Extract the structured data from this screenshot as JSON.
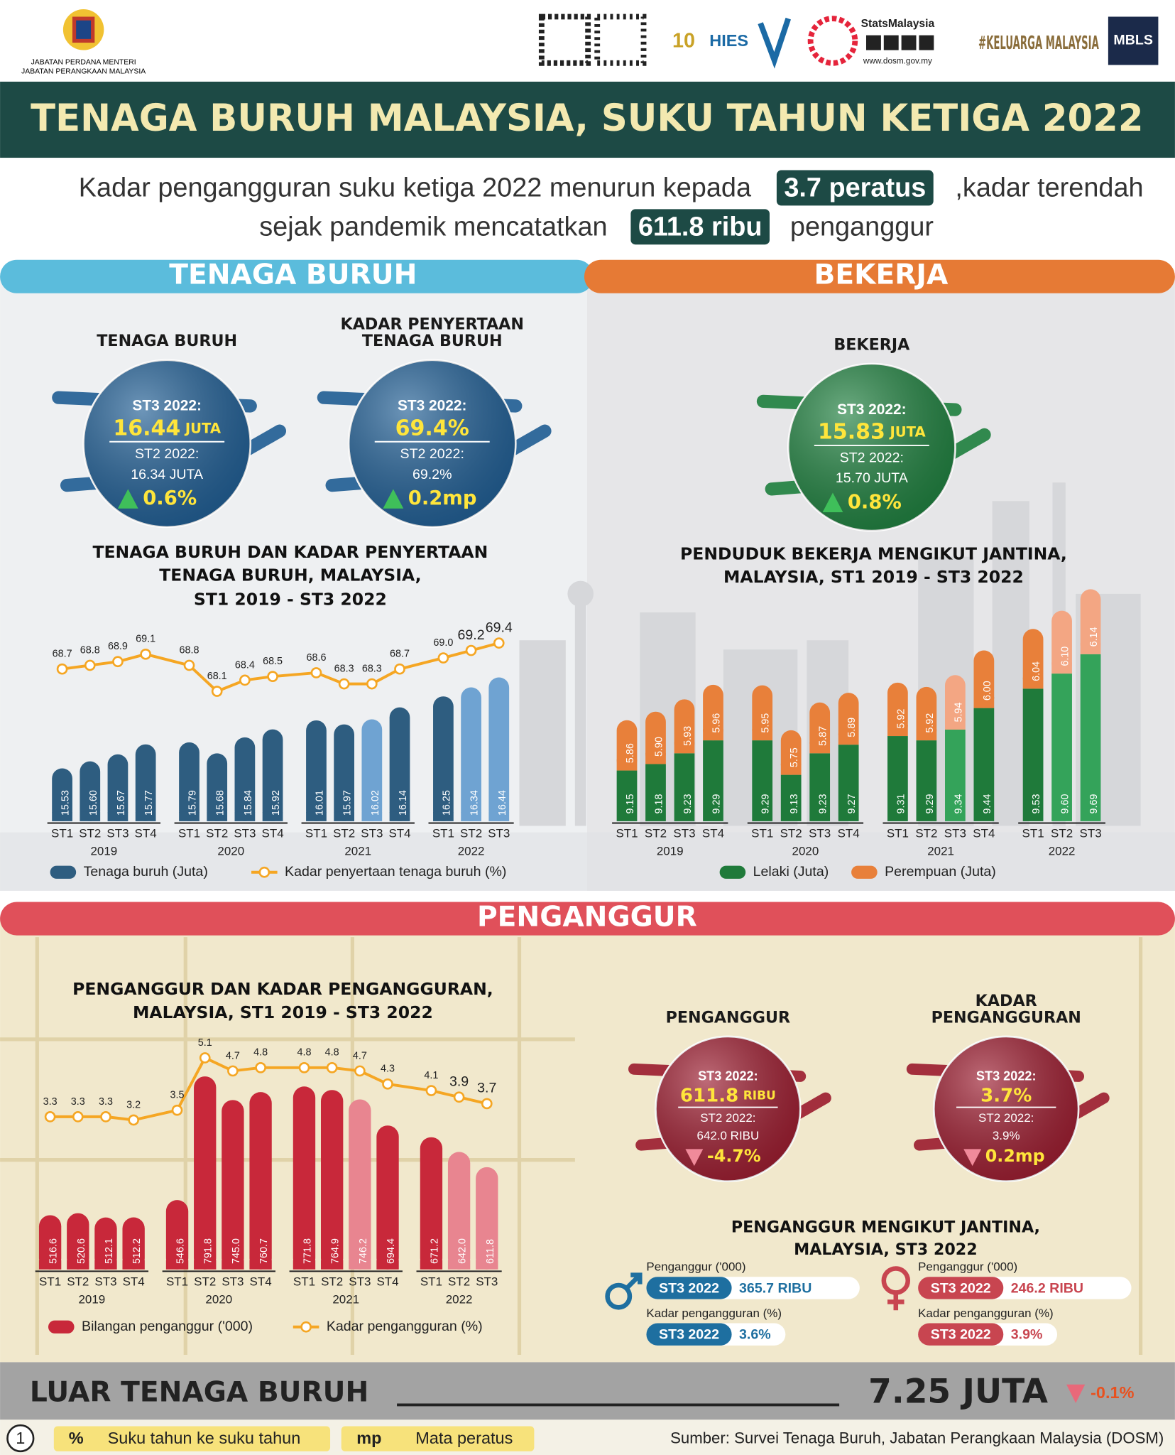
{
  "header": {
    "ministry": [
      "JABATAN PERDANA MENTERI",
      "JABATAN PERANGKAAN MALAYSIA"
    ],
    "brand": "StatsMalaysia",
    "website": "www.dosm.gov.my",
    "campaign": "#KELUARGA MALAYSIA",
    "badge": "MBLS"
  },
  "title": "TENAGA BURUH MALAYSIA, SUKU TAHUN KETIGA 2022",
  "headline": {
    "line1": [
      "Kadar pengangguran suku ketiga 2022 menurun kepada",
      "3.7 peratus",
      ",kadar terendah"
    ],
    "line2": [
      "sejak pandemik mencatatkan",
      "611.8 ribu",
      "penganggur"
    ]
  },
  "sections": [
    "TENAGA BURUH",
    "BEKERJA",
    "PENGANGGUR"
  ],
  "kpis": [
    {
      "heading": [
        "TENAGA BURUH"
      ],
      "current_label": "ST3 2022:",
      "current_value": "16.44",
      "current_unit": "JUTA",
      "previous_label": "ST2 2022:",
      "previous_value": "16.34 JUTA",
      "change": "0.6%",
      "direction": "up",
      "color": "#1f5d93"
    },
    {
      "heading": [
        "KADAR PENYERTAAN",
        "TENAGA BURUH"
      ],
      "current_label": "ST3 2022:",
      "current_value": "69.4%",
      "previous_label": "ST2 2022:",
      "previous_value": "69.2%",
      "change": "0.2mp",
      "direction": "up",
      "color": "#1f5d93"
    },
    {
      "heading": [
        "BEKERJA"
      ],
      "current_label": "ST3 2022:",
      "current_value": "15.83",
      "current_unit": "JUTA",
      "previous_label": "ST2 2022:",
      "previous_value": "15.70 JUTA",
      "change": "0.8%",
      "direction": "up",
      "color": "#1e7f3e"
    },
    {
      "heading": [
        "PENGANGGUR"
      ],
      "current_label": "ST3 2022:",
      "current_value": "611.8",
      "current_unit": "RIBU",
      "previous_label": "ST2 2022:",
      "previous_value": "642.0 RIBU",
      "change": "-4.7%",
      "direction": "down",
      "color": "#9b1b2e"
    },
    {
      "heading": [
        "KADAR",
        "PENGANGGURAN"
      ],
      "current_label": "ST3 2022:",
      "current_value": "3.7%",
      "previous_label": "ST2 2022:",
      "previous_value": "3.9%",
      "change": "0.2mp",
      "direction": "down",
      "color": "#9b1b2e"
    }
  ],
  "chart_data": [
    {
      "type": "bar_line",
      "title": [
        "TENAGA BURUH DAN KADAR PENYERTAAN",
        "TENAGA BURUH, MALAYSIA,",
        "ST1 2019 - ST3 2022"
      ],
      "groups": [
        {
          "name": "2019",
          "categories": [
            "ST1",
            "ST2",
            "ST3",
            "ST4"
          ]
        },
        {
          "name": "2020",
          "categories": [
            "ST1",
            "ST2",
            "ST3",
            "ST4"
          ]
        },
        {
          "name": "2021",
          "categories": [
            "ST1",
            "ST2",
            "ST3",
            "ST4"
          ]
        },
        {
          "name": "2022",
          "categories": [
            "ST1",
            "ST2",
            "ST3"
          ]
        }
      ],
      "series": [
        {
          "name": "Tenaga buruh (Juta)",
          "kind": "bar",
          "color": "#2e5d80",
          "colors": [
            "#2e5d80",
            "#2e5d80",
            "#2e5d80",
            "#2e5d80",
            "#2e5d80",
            "#2e5d80",
            "#2e5d80",
            "#2e5d80",
            "#2e5d80",
            "#2e5d80",
            "#6fa3d2",
            "#2e5d80",
            "#2e5d80",
            "#6fa3d2",
            "#6fa3d2"
          ],
          "values": [
            15.53,
            15.6,
            15.67,
            15.77,
            15.79,
            15.68,
            15.84,
            15.92,
            16.01,
            15.97,
            16.02,
            16.14,
            16.25,
            16.34,
            16.44
          ],
          "value_labels": [
            "15.53",
            "15.60",
            "15.67",
            "15.77",
            "15.79",
            "15.68",
            "15.84",
            "15.92",
            "16.01",
            "15.97",
            "16.02",
            "16.14",
            "16.25",
            "16.34",
            "16.44"
          ]
        },
        {
          "name": "Kadar penyertaan tenaga buruh (%)",
          "kind": "line",
          "color": "#f5a623",
          "values": [
            68.7,
            68.8,
            68.9,
            69.1,
            68.8,
            68.1,
            68.4,
            68.5,
            68.6,
            68.3,
            68.3,
            68.7,
            69.0,
            69.2,
            69.4
          ],
          "value_labels": [
            "68.7",
            "68.8",
            "68.9",
            "69.1",
            "68.8",
            "68.1",
            "68.4",
            "68.5",
            "68.6",
            "68.3",
            "68.3",
            "68.7",
            "69.0",
            "69.2",
            "69.4"
          ]
        }
      ]
    },
    {
      "type": "stacked_bar",
      "title": [
        "PENDUDUK BEKERJA MENGIKUT JANTINA,",
        "MALAYSIA, ST1 2019 - ST3 2022"
      ],
      "groups": [
        {
          "name": "2019",
          "categories": [
            "ST1",
            "ST2",
            "ST3",
            "ST4"
          ]
        },
        {
          "name": "2020",
          "categories": [
            "ST1",
            "ST2",
            "ST3",
            "ST4"
          ]
        },
        {
          "name": "2021",
          "categories": [
            "ST1",
            "ST2",
            "ST3",
            "ST4"
          ]
        },
        {
          "name": "2022",
          "categories": [
            "ST1",
            "ST2",
            "ST3"
          ]
        }
      ],
      "series": [
        {
          "name": "Lelaki (Juta)",
          "color": "#1f7a3a",
          "colors": [
            "#1f7a3a",
            "#1f7a3a",
            "#1f7a3a",
            "#1f7a3a",
            "#1f7a3a",
            "#1f7a3a",
            "#1f7a3a",
            "#1f7a3a",
            "#1f7a3a",
            "#1f7a3a",
            "#34a35a",
            "#1f7a3a",
            "#1f7a3a",
            "#34a35a",
            "#34a35a"
          ],
          "values": [
            9.15,
            9.18,
            9.23,
            9.29,
            9.29,
            9.13,
            9.23,
            9.27,
            9.31,
            9.29,
            9.34,
            9.44,
            9.53,
            9.6,
            9.69
          ],
          "value_labels": [
            "9.15",
            "9.18",
            "9.23",
            "9.29",
            "9.29",
            "9.13",
            "9.23",
            "9.27",
            "9.31",
            "9.29",
            "9.34",
            "9.44",
            "9.53",
            "9.60",
            "9.69"
          ]
        },
        {
          "name": "Perempuan (Juta)",
          "color": "#e8803a",
          "colors": [
            "#e8803a",
            "#e8803a",
            "#e8803a",
            "#e8803a",
            "#e8803a",
            "#e8803a",
            "#e8803a",
            "#e8803a",
            "#e8803a",
            "#e8803a",
            "#f3a683",
            "#e8803a",
            "#e8803a",
            "#f3a683",
            "#f3a683"
          ],
          "values": [
            5.86,
            5.9,
            5.93,
            5.96,
            5.95,
            5.75,
            5.87,
            5.89,
            5.92,
            5.92,
            5.94,
            6.0,
            6.04,
            6.1,
            6.14
          ],
          "value_labels": [
            "5.86",
            "5.90",
            "5.93",
            "5.96",
            "5.95",
            "5.75",
            "5.87",
            "5.89",
            "5.92",
            "5.92",
            "5.94",
            "6.00",
            "6.04",
            "6.10",
            "6.14"
          ]
        }
      ]
    },
    {
      "type": "bar_line",
      "title": [
        "PENGANGGUR DAN KADAR PENGANGGURAN,",
        "MALAYSIA, ST1 2019 - ST3 2022"
      ],
      "groups": [
        {
          "name": "2019",
          "categories": [
            "ST1",
            "ST2",
            "ST3",
            "ST4"
          ]
        },
        {
          "name": "2020",
          "categories": [
            "ST1",
            "ST2",
            "ST3",
            "ST4"
          ]
        },
        {
          "name": "2021",
          "categories": [
            "ST1",
            "ST2",
            "ST3",
            "ST4"
          ]
        },
        {
          "name": "2022",
          "categories": [
            "ST1",
            "ST2",
            "ST3"
          ]
        }
      ],
      "series": [
        {
          "name": "Bilangan penganggur ('000)",
          "kind": "bar",
          "color": "#c8283a",
          "colors": [
            "#c8283a",
            "#c8283a",
            "#c8283a",
            "#c8283a",
            "#c8283a",
            "#c8283a",
            "#c8283a",
            "#c8283a",
            "#c8283a",
            "#c8283a",
            "#e88590",
            "#c8283a",
            "#c8283a",
            "#e88590",
            "#e88590"
          ],
          "values": [
            516.6,
            520.6,
            512.1,
            512.2,
            546.6,
            791.8,
            745.0,
            760.7,
            771.8,
            764.9,
            746.2,
            694.4,
            671.2,
            642.0,
            611.8
          ],
          "value_labels": [
            "516.6",
            "520.6",
            "512.1",
            "512.2",
            "546.6",
            "791.8",
            "745.0",
            "760.7",
            "771.8",
            "764.9",
            "746.2",
            "694.4",
            "671.2",
            "642.0",
            "611.8"
          ]
        },
        {
          "name": "Kadar pengangguran (%)",
          "kind": "line",
          "color": "#f5a623",
          "values": [
            3.3,
            3.3,
            3.3,
            3.2,
            3.5,
            5.1,
            4.7,
            4.8,
            4.8,
            4.8,
            4.7,
            4.3,
            4.1,
            3.9,
            3.7
          ]
        }
      ]
    }
  ],
  "gender": {
    "title": [
      "PENGANGGUR MENGIKUT JANTINA,",
      "MALAYSIA, ST3 2022"
    ],
    "groups": [
      {
        "count_label": "Penganggur ('000)",
        "count_tag": "ST3 2022",
        "count": "365.7 RIBU",
        "rate_label": "Kadar pengangguran (%)",
        "rate_tag": "ST3 2022",
        "rate": "3.6%",
        "color": "#1e6fa0"
      },
      {
        "count_label": "Penganggur ('000)",
        "count_tag": "ST3 2022",
        "count": "246.2 RIBU",
        "rate_label": "Kadar pengangguran (%)",
        "rate_tag": "ST3 2022",
        "rate": "3.9%",
        "color": "#c84550"
      }
    ]
  },
  "outside": {
    "label": "LUAR TENAGA BURUH",
    "value": "7.25 JUTA",
    "change": "-0.1%"
  },
  "footer": {
    "page": "1",
    "legend": [
      {
        "symbol": "%",
        "text": "Suku tahun ke suku tahun"
      },
      {
        "symbol": "mp",
        "text": "Mata peratus"
      }
    ],
    "source": "Sumber: Survei Tenaga Buruh, Jabatan Perangkaan Malaysia (DOSM)"
  }
}
